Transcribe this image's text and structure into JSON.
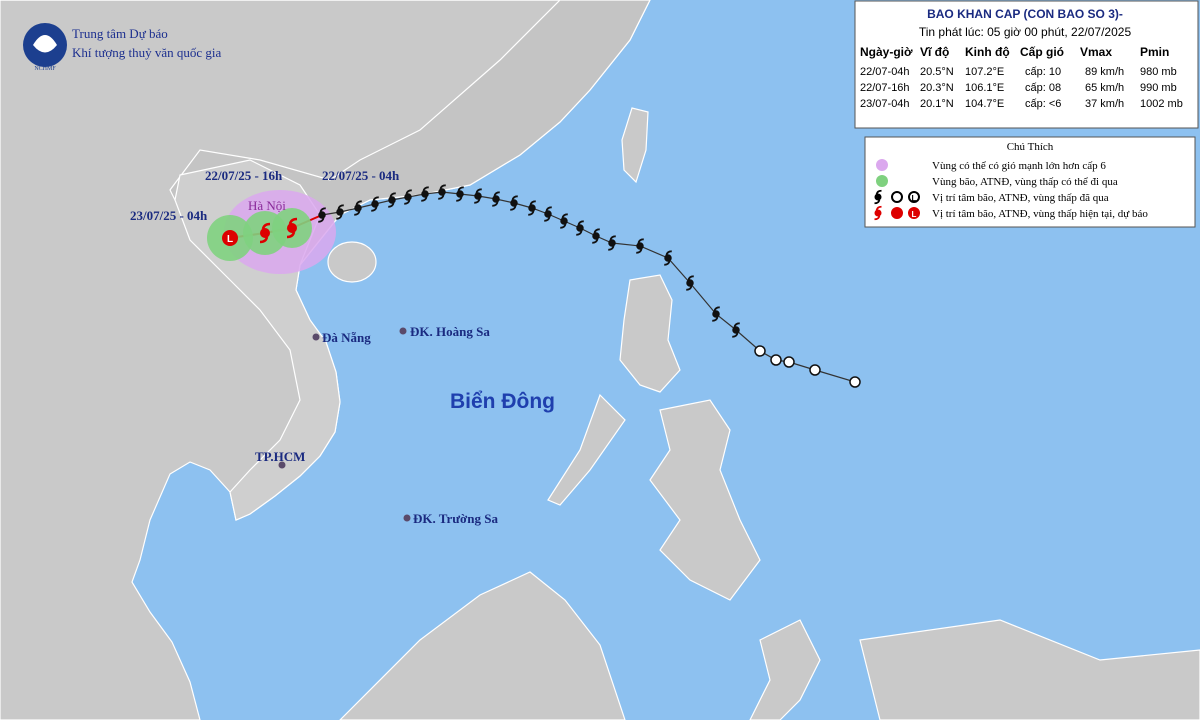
{
  "header": {
    "org_lines": [
      "Trung tâm Dự báo",
      "Khí tượng thuỷ văn quốc gia"
    ],
    "logo_text": "NCHMF"
  },
  "info": {
    "title": "BAO KHAN CAP (CON BAO SO 3)-",
    "issued": "Tin phát lúc: 05 giờ 00 phút, 22/07/2025",
    "table": {
      "columns": [
        "Ngày-giờ",
        "Vĩ độ",
        "Kinh độ",
        "Cấp gió",
        "Vmax",
        "Pmin"
      ],
      "rows": [
        [
          "22/07-04h",
          "20.5°N",
          "107.2°E",
          "cấp: 10",
          "89 km/h",
          "980 mb"
        ],
        [
          "22/07-16h",
          "20.3°N",
          "106.1°E",
          "cấp: 08",
          "65 km/h",
          "990 mb"
        ],
        [
          "23/07-04h",
          "20.1°N",
          "104.7°E",
          "cấp: <6",
          "37 km/h",
          "1002 mb"
        ]
      ]
    }
  },
  "legend": {
    "title": "Chú Thích",
    "low_symbol": "L",
    "items": [
      "Vùng có thể có gió mạnh lớn hơn cấp 6",
      "Vùng bão, ATNĐ, vùng thấp có thể đi qua",
      "Vị trí tâm bão, ATNĐ, vùng thấp đã qua",
      "Vị trí tâm bão, ATNĐ, vùng thấp hiện tại, dự báo"
    ]
  },
  "labels": {
    "time_labels": [
      "22/07/25 - 16h",
      "22/07/25 - 04h",
      "23/07/25 - 04h"
    ],
    "places": [
      "Hà Nội",
      "Đà Nẵng",
      "ĐK. Hoàng Sa",
      "TP.HCM",
      "ĐK. Trường Sa"
    ],
    "sea": "Biển Đông"
  }
}
